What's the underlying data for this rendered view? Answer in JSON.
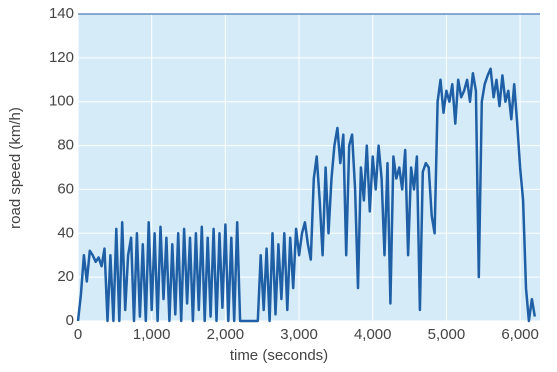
{
  "chart_data": {
    "type": "line",
    "xlabel": "time (seconds)",
    "ylabel": "road speed (km/h)",
    "xlim": [
      0,
      6270
    ],
    "ylim": [
      0,
      140
    ],
    "xticks": [
      0,
      {
        "value": 1000,
        "label": "1,000"
      },
      {
        "value": 2000,
        "label": "2,000"
      },
      {
        "value": 3000,
        "label": "3,000"
      },
      {
        "value": 4000,
        "label": "4,000"
      },
      {
        "value": 5000,
        "label": "5,000"
      },
      {
        "value": 6000,
        "label": "6,000"
      }
    ],
    "yticks": [
      0,
      20,
      40,
      60,
      80,
      100,
      120,
      140
    ],
    "grid": true,
    "background": "#d5ecf8",
    "series": [
      {
        "color": "#1f5fa6",
        "x": [
          0,
          40,
          80,
          120,
          160,
          200,
          240,
          280,
          320,
          360,
          400,
          440,
          480,
          520,
          560,
          600,
          640,
          680,
          720,
          760,
          800,
          840,
          880,
          920,
          960,
          1000,
          1040,
          1080,
          1120,
          1160,
          1200,
          1240,
          1280,
          1320,
          1360,
          1400,
          1440,
          1480,
          1520,
          1560,
          1600,
          1640,
          1680,
          1720,
          1760,
          1800,
          1840,
          1880,
          1920,
          1960,
          2000,
          2040,
          2080,
          2120,
          2160,
          2200,
          2240,
          2280,
          2320,
          2360,
          2400,
          2440,
          2480,
          2520,
          2560,
          2600,
          2640,
          2680,
          2720,
          2760,
          2800,
          2840,
          2880,
          2920,
          2960,
          3000,
          3040,
          3080,
          3120,
          3160,
          3200,
          3240,
          3280,
          3320,
          3360,
          3400,
          3440,
          3480,
          3520,
          3560,
          3600,
          3640,
          3680,
          3720,
          3760,
          3800,
          3840,
          3880,
          3920,
          3960,
          4000,
          4040,
          4080,
          4120,
          4160,
          4200,
          4240,
          4280,
          4320,
          4360,
          4400,
          4440,
          4480,
          4520,
          4560,
          4600,
          4640,
          4680,
          4720,
          4760,
          4800,
          4840,
          4880,
          4920,
          4960,
          5000,
          5040,
          5080,
          5120,
          5160,
          5200,
          5240,
          5280,
          5320,
          5360,
          5400,
          5440,
          5480,
          5520,
          5560,
          5600,
          5640,
          5680,
          5720,
          5760,
          5800,
          5840,
          5880,
          5920,
          5960,
          6000,
          6040,
          6080,
          6120,
          6160,
          6200
        ],
        "values": [
          0,
          12,
          30,
          18,
          32,
          30,
          27,
          29,
          25,
          33,
          0,
          30,
          0,
          42,
          0,
          45,
          5,
          30,
          38,
          0,
          40,
          2,
          35,
          0,
          45,
          5,
          40,
          0,
          43,
          10,
          38,
          0,
          35,
          3,
          40,
          0,
          42,
          8,
          38,
          0,
          40,
          5,
          43,
          0,
          38,
          2,
          42,
          0,
          40,
          6,
          44,
          0,
          38,
          0,
          45,
          0,
          0,
          0,
          0,
          0,
          0,
          0,
          30,
          5,
          33,
          0,
          40,
          3,
          35,
          10,
          40,
          5,
          38,
          15,
          42,
          30,
          40,
          45,
          35,
          28,
          65,
          75,
          55,
          30,
          70,
          40,
          65,
          80,
          88,
          72,
          85,
          30,
          80,
          85,
          60,
          15,
          70,
          55,
          80,
          50,
          75,
          60,
          80,
          65,
          30,
          72,
          8,
          75,
          65,
          70,
          60,
          78,
          30,
          70,
          60,
          75,
          5,
          68,
          72,
          70,
          48,
          40,
          100,
          110,
          95,
          105,
          100,
          108,
          90,
          110,
          102,
          105,
          110,
          100,
          113,
          105,
          20,
          100,
          108,
          112,
          115,
          102,
          110,
          98,
          112,
          100,
          105,
          92,
          108,
          90,
          70,
          55,
          15,
          0,
          10,
          2
        ]
      }
    ]
  }
}
